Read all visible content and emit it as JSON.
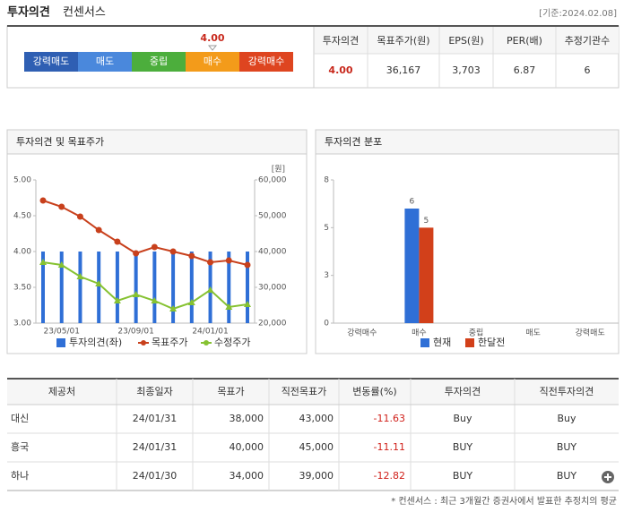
{
  "header": {
    "title": "투자의견",
    "subtitle": "컨센서스",
    "date": "[기준:2024.02.08]"
  },
  "rating_scale": {
    "labels": [
      "강력매도",
      "매도",
      "중립",
      "매수",
      "강력매수"
    ],
    "colors": [
      "#2f5fb3",
      "#4a88dc",
      "#4cae3c",
      "#f39b1a",
      "#de4520"
    ],
    "xlim": [
      1,
      5
    ],
    "indicator": {
      "value": 4,
      "label": "4.00"
    }
  },
  "summary": {
    "headers": [
      "투자의견",
      "목표주가(원)",
      "EPS(원)",
      "PER(배)",
      "추정기관수"
    ],
    "values": [
      "4.00",
      "36,167",
      "3,703",
      "6.87",
      "6"
    ]
  },
  "chart_data": [
    {
      "type": "bar",
      "title": "투자의견 및 목표주가",
      "categories": [
        null,
        "23/05/01",
        null,
        null,
        null,
        "23/09/01",
        null,
        null,
        null,
        "24/01/01",
        null,
        null
      ],
      "series": [
        {
          "name": "투자의견(좌)",
          "type": "bar",
          "color": "#2f6fd6",
          "values": [
            4,
            4,
            4,
            4,
            4,
            4,
            4,
            4,
            4,
            4,
            4,
            4
          ]
        },
        {
          "name": "목표주가",
          "type": "line",
          "axis": "y2",
          "color": "#c8401c",
          "values": [
            54250,
            52500,
            49750,
            46000,
            42750,
            39500,
            41250,
            40000,
            38750,
            37000,
            37500,
            36250
          ]
        },
        {
          "name": "수정주가",
          "type": "line",
          "axis": "y2",
          "color": "#86c232",
          "values": [
            37000,
            36250,
            33000,
            31000,
            26250,
            28000,
            26250,
            24000,
            25750,
            29250,
            24500,
            25250
          ]
        }
      ],
      "ylim": [
        3,
        5
      ],
      "yticks": [
        {
          "value": 3,
          "label": "3.00"
        },
        {
          "value": 3.5,
          "label": "3.50"
        },
        {
          "value": 4,
          "label": "4.00"
        },
        {
          "value": 4.5,
          "label": "4.50"
        },
        {
          "value": 5,
          "label": "5.00"
        }
      ],
      "y2lim": [
        20000,
        60000
      ],
      "y2ticks": [
        {
          "value": 20000,
          "label": "20,000"
        },
        {
          "value": 30000,
          "label": "30,000"
        },
        {
          "value": 40000,
          "label": "40,000"
        },
        {
          "value": 50000,
          "label": "50,000"
        },
        {
          "value": 60000,
          "label": "60,000"
        }
      ],
      "y2_label": "[원]"
    },
    {
      "type": "bar",
      "title": "투자의견 분포",
      "categories": [
        "강력매수",
        "매수",
        "중립",
        "매도",
        "강력매도"
      ],
      "series": [
        {
          "name": "현재",
          "color": "#2f6fd6",
          "values": [
            0,
            6,
            0,
            0,
            0
          ]
        },
        {
          "name": "한달전",
          "color": "#d2401a",
          "values": [
            0,
            5,
            0,
            0,
            0
          ]
        }
      ],
      "ylim": [
        0,
        7.5
      ],
      "yticks": [
        0,
        {
          "value": 2.5,
          "label": "3"
        },
        5,
        {
          "value": 7.5,
          "label": "8"
        }
      ]
    }
  ],
  "providers_table": {
    "headers": [
      "제공처",
      "최종일자",
      "목표가",
      "직전목표가",
      "변동률(%)",
      "투자의견",
      "직전투자의견"
    ],
    "rows": [
      [
        "대신",
        "24/01/31",
        "38,000",
        "43,000",
        "-11.63",
        "Buy",
        "Buy"
      ],
      [
        "흥국",
        "24/01/31",
        "40,000",
        "45,000",
        "-11.11",
        "BUY",
        "BUY"
      ],
      [
        "하나",
        "24/01/30",
        "34,000",
        "39,000",
        "-12.82",
        "BUY",
        "BUY"
      ]
    ]
  },
  "footnote": "* 컨센서스 : 최근 3개월간 증권사에서 발표한 추정치의 평균"
}
